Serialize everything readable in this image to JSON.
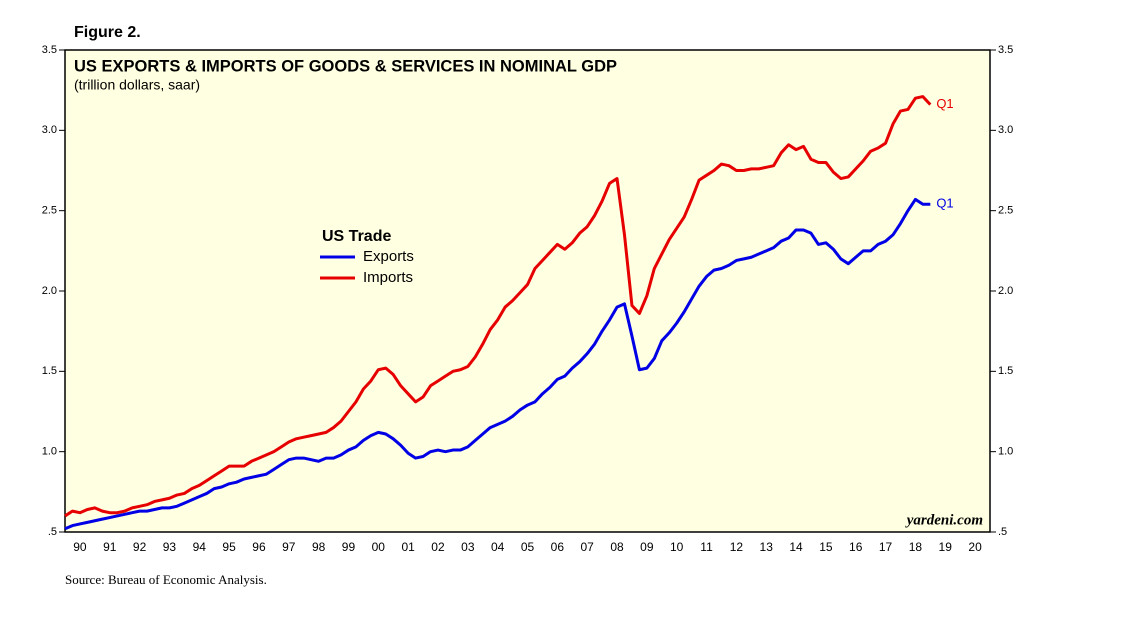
{
  "chart_data": {
    "type": "line",
    "figure_label": "Figure 2.",
    "title": "US EXPORTS & IMPORTS OF GOODS & SERVICES IN NOMINAL GDP",
    "subtitle": "(trillion dollars, saar)",
    "legend_title": "US Trade",
    "watermark": "yardeni.com",
    "source": "Source: Bureau of Economic Analysis.",
    "xlim": [
      1990,
      2021
    ],
    "xticks": [
      {
        "value": 1990.5,
        "label": "90"
      },
      {
        "value": 1991.5,
        "label": "91"
      },
      {
        "value": 1992.5,
        "label": "92"
      },
      {
        "value": 1993.5,
        "label": "93"
      },
      {
        "value": 1994.5,
        "label": "94"
      },
      {
        "value": 1995.5,
        "label": "95"
      },
      {
        "value": 1996.5,
        "label": "96"
      },
      {
        "value": 1997.5,
        "label": "97"
      },
      {
        "value": 1998.5,
        "label": "98"
      },
      {
        "value": 1999.5,
        "label": "99"
      },
      {
        "value": 2000.5,
        "label": "00"
      },
      {
        "value": 2001.5,
        "label": "01"
      },
      {
        "value": 2002.5,
        "label": "02"
      },
      {
        "value": 2003.5,
        "label": "03"
      },
      {
        "value": 2004.5,
        "label": "04"
      },
      {
        "value": 2005.5,
        "label": "05"
      },
      {
        "value": 2006.5,
        "label": "06"
      },
      {
        "value": 2007.5,
        "label": "07"
      },
      {
        "value": 2008.5,
        "label": "08"
      },
      {
        "value": 2009.5,
        "label": "09"
      },
      {
        "value": 2010.5,
        "label": "10"
      },
      {
        "value": 2011.5,
        "label": "11"
      },
      {
        "value": 2012.5,
        "label": "12"
      },
      {
        "value": 2013.5,
        "label": "13"
      },
      {
        "value": 2014.5,
        "label": "14"
      },
      {
        "value": 2015.5,
        "label": "15"
      },
      {
        "value": 2016.5,
        "label": "16"
      },
      {
        "value": 2017.5,
        "label": "17"
      },
      {
        "value": 2018.5,
        "label": "18"
      },
      {
        "value": 2019.5,
        "label": "19"
      },
      {
        "value": 2020.5,
        "label": "20"
      }
    ],
    "ylim": [
      0.5,
      3.5
    ],
    "yticks": [
      {
        "value": 0.5,
        "label": ".5"
      },
      {
        "value": 1,
        "label": "1.0"
      },
      {
        "value": 1.5,
        "label": "1.5"
      },
      {
        "value": 2,
        "label": "2.0"
      },
      {
        "value": 2.5,
        "label": "2.5"
      },
      {
        "value": 3,
        "label": "3.0"
      },
      {
        "value": 3.5,
        "label": "3.5"
      }
    ],
    "x": [
      1990,
      1990.25,
      1990.5,
      1990.75,
      1991,
      1991.25,
      1991.5,
      1991.75,
      1992,
      1992.25,
      1992.5,
      1992.75,
      1993,
      1993.25,
      1993.5,
      1993.75,
      1994,
      1994.25,
      1994.5,
      1994.75,
      1995,
      1995.25,
      1995.5,
      1995.75,
      1996,
      1996.25,
      1996.5,
      1996.75,
      1997,
      1997.25,
      1997.5,
      1997.75,
      1998,
      1998.25,
      1998.5,
      1998.75,
      1999,
      1999.25,
      1999.5,
      1999.75,
      2000,
      2000.25,
      2000.5,
      2000.75,
      2001,
      2001.25,
      2001.5,
      2001.75,
      2002,
      2002.25,
      2002.5,
      2002.75,
      2003,
      2003.25,
      2003.5,
      2003.75,
      2004,
      2004.25,
      2004.5,
      2004.75,
      2005,
      2005.25,
      2005.5,
      2005.75,
      2006,
      2006.25,
      2006.5,
      2006.75,
      2007,
      2007.25,
      2007.5,
      2007.75,
      2008,
      2008.25,
      2008.5,
      2008.75,
      2009,
      2009.25,
      2009.5,
      2009.75,
      2010,
      2010.25,
      2010.5,
      2010.75,
      2011,
      2011.25,
      2011.5,
      2011.75,
      2012,
      2012.25,
      2012.5,
      2012.75,
      2013,
      2013.25,
      2013.5,
      2013.75,
      2014,
      2014.25,
      2014.5,
      2014.75,
      2015,
      2015.25,
      2015.5,
      2015.75,
      2016,
      2016.25,
      2016.5,
      2016.75,
      2017,
      2017.25,
      2017.5,
      2017.75,
      2018,
      2018.25,
      2018.5,
      2018.75,
      2019
    ],
    "series": [
      {
        "name": "Exports",
        "color": "#0000e6",
        "end_label": "Q1",
        "values": [
          0.52,
          0.54,
          0.55,
          0.56,
          0.57,
          0.58,
          0.59,
          0.6,
          0.61,
          0.62,
          0.63,
          0.63,
          0.64,
          0.65,
          0.65,
          0.66,
          0.68,
          0.7,
          0.72,
          0.74,
          0.77,
          0.78,
          0.8,
          0.81,
          0.83,
          0.84,
          0.85,
          0.86,
          0.89,
          0.92,
          0.95,
          0.96,
          0.96,
          0.95,
          0.94,
          0.96,
          0.96,
          0.98,
          1.01,
          1.03,
          1.07,
          1.1,
          1.12,
          1.11,
          1.08,
          1.04,
          0.99,
          0.96,
          0.97,
          1.0,
          1.01,
          1.0,
          1.01,
          1.01,
          1.03,
          1.07,
          1.11,
          1.15,
          1.17,
          1.19,
          1.22,
          1.26,
          1.29,
          1.31,
          1.36,
          1.4,
          1.45,
          1.47,
          1.52,
          1.56,
          1.61,
          1.67,
          1.75,
          1.82,
          1.9,
          1.92,
          1.72,
          1.51,
          1.52,
          1.58,
          1.69,
          1.74,
          1.8,
          1.87,
          1.95,
          2.03,
          2.09,
          2.13,
          2.14,
          2.16,
          2.19,
          2.2,
          2.21,
          2.23,
          2.25,
          2.27,
          2.31,
          2.33,
          2.38,
          2.38,
          2.36,
          2.29,
          2.3,
          2.26,
          2.2,
          2.17,
          2.21,
          2.25,
          2.25,
          2.29,
          2.31,
          2.35,
          2.42,
          2.5,
          2.57,
          2.54,
          2.54
        ]
      },
      {
        "name": "Imports",
        "color": "#e60000",
        "end_label": "Q1",
        "values": [
          0.6,
          0.63,
          0.62,
          0.64,
          0.65,
          0.63,
          0.62,
          0.62,
          0.63,
          0.65,
          0.66,
          0.67,
          0.69,
          0.7,
          0.71,
          0.73,
          0.74,
          0.77,
          0.79,
          0.82,
          0.85,
          0.88,
          0.91,
          0.91,
          0.91,
          0.94,
          0.96,
          0.98,
          1.0,
          1.03,
          1.06,
          1.08,
          1.09,
          1.1,
          1.11,
          1.12,
          1.15,
          1.19,
          1.25,
          1.31,
          1.39,
          1.44,
          1.51,
          1.52,
          1.48,
          1.41,
          1.36,
          1.31,
          1.34,
          1.41,
          1.44,
          1.47,
          1.5,
          1.51,
          1.53,
          1.59,
          1.67,
          1.76,
          1.82,
          1.9,
          1.94,
          1.99,
          2.04,
          2.14,
          2.19,
          2.24,
          2.29,
          2.26,
          2.3,
          2.36,
          2.4,
          2.47,
          2.56,
          2.67,
          2.7,
          2.35,
          1.91,
          1.86,
          1.97,
          2.14,
          2.23,
          2.32,
          2.39,
          2.46,
          2.57,
          2.69,
          2.72,
          2.75,
          2.79,
          2.78,
          2.75,
          2.75,
          2.76,
          2.76,
          2.77,
          2.78,
          2.86,
          2.91,
          2.88,
          2.9,
          2.82,
          2.8,
          2.8,
          2.74,
          2.7,
          2.71,
          2.76,
          2.81,
          2.87,
          2.89,
          2.92,
          3.04,
          3.12,
          3.13,
          3.2,
          3.21,
          3.16
        ]
      }
    ]
  }
}
